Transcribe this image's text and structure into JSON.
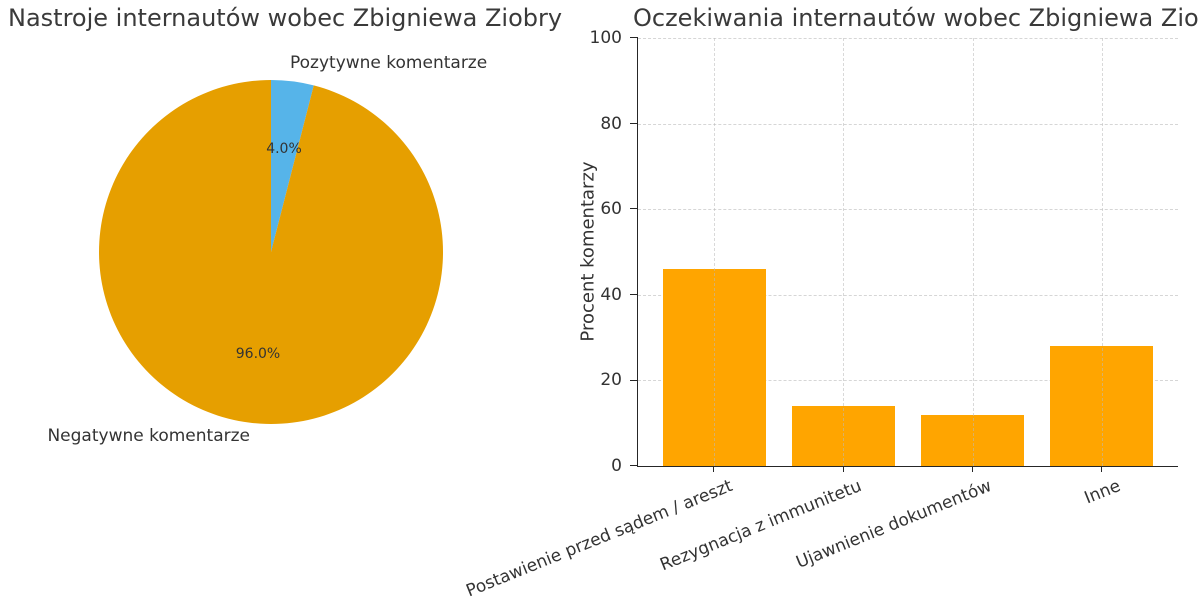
{
  "chart_data": [
    {
      "type": "pie",
      "title": "Nastroje internautów wobec Zbigniewa Ziobry",
      "labels": [
        "Pozytywne komentarze",
        "Negatywne komentarze"
      ],
      "values": [
        4.0,
        96.0
      ],
      "autopct_labels": [
        "4.0%",
        "96.0%"
      ],
      "colors": [
        "#56B4E9",
        "#E69F00"
      ],
      "startangle": 90,
      "counterclock": false
    },
    {
      "type": "bar",
      "title": "Oczekiwania internautów wobec Zbigniewa Ziobry",
      "categories": [
        "Postawienie przed sądem / areszt",
        "Rezygnacja z immunitetu",
        "Ujawnienie dokumentów",
        "Inne"
      ],
      "values": [
        46,
        14,
        12,
        28
      ],
      "ylabel": "Procent komentarzy",
      "ylim": [
        0,
        100
      ],
      "yticks": [
        0,
        20,
        40,
        60,
        80,
        100
      ],
      "bar_color": "#FFA500",
      "grid": "dashed-both-axes",
      "xtick_rotation_deg": -22,
      "legend": "none"
    }
  ]
}
